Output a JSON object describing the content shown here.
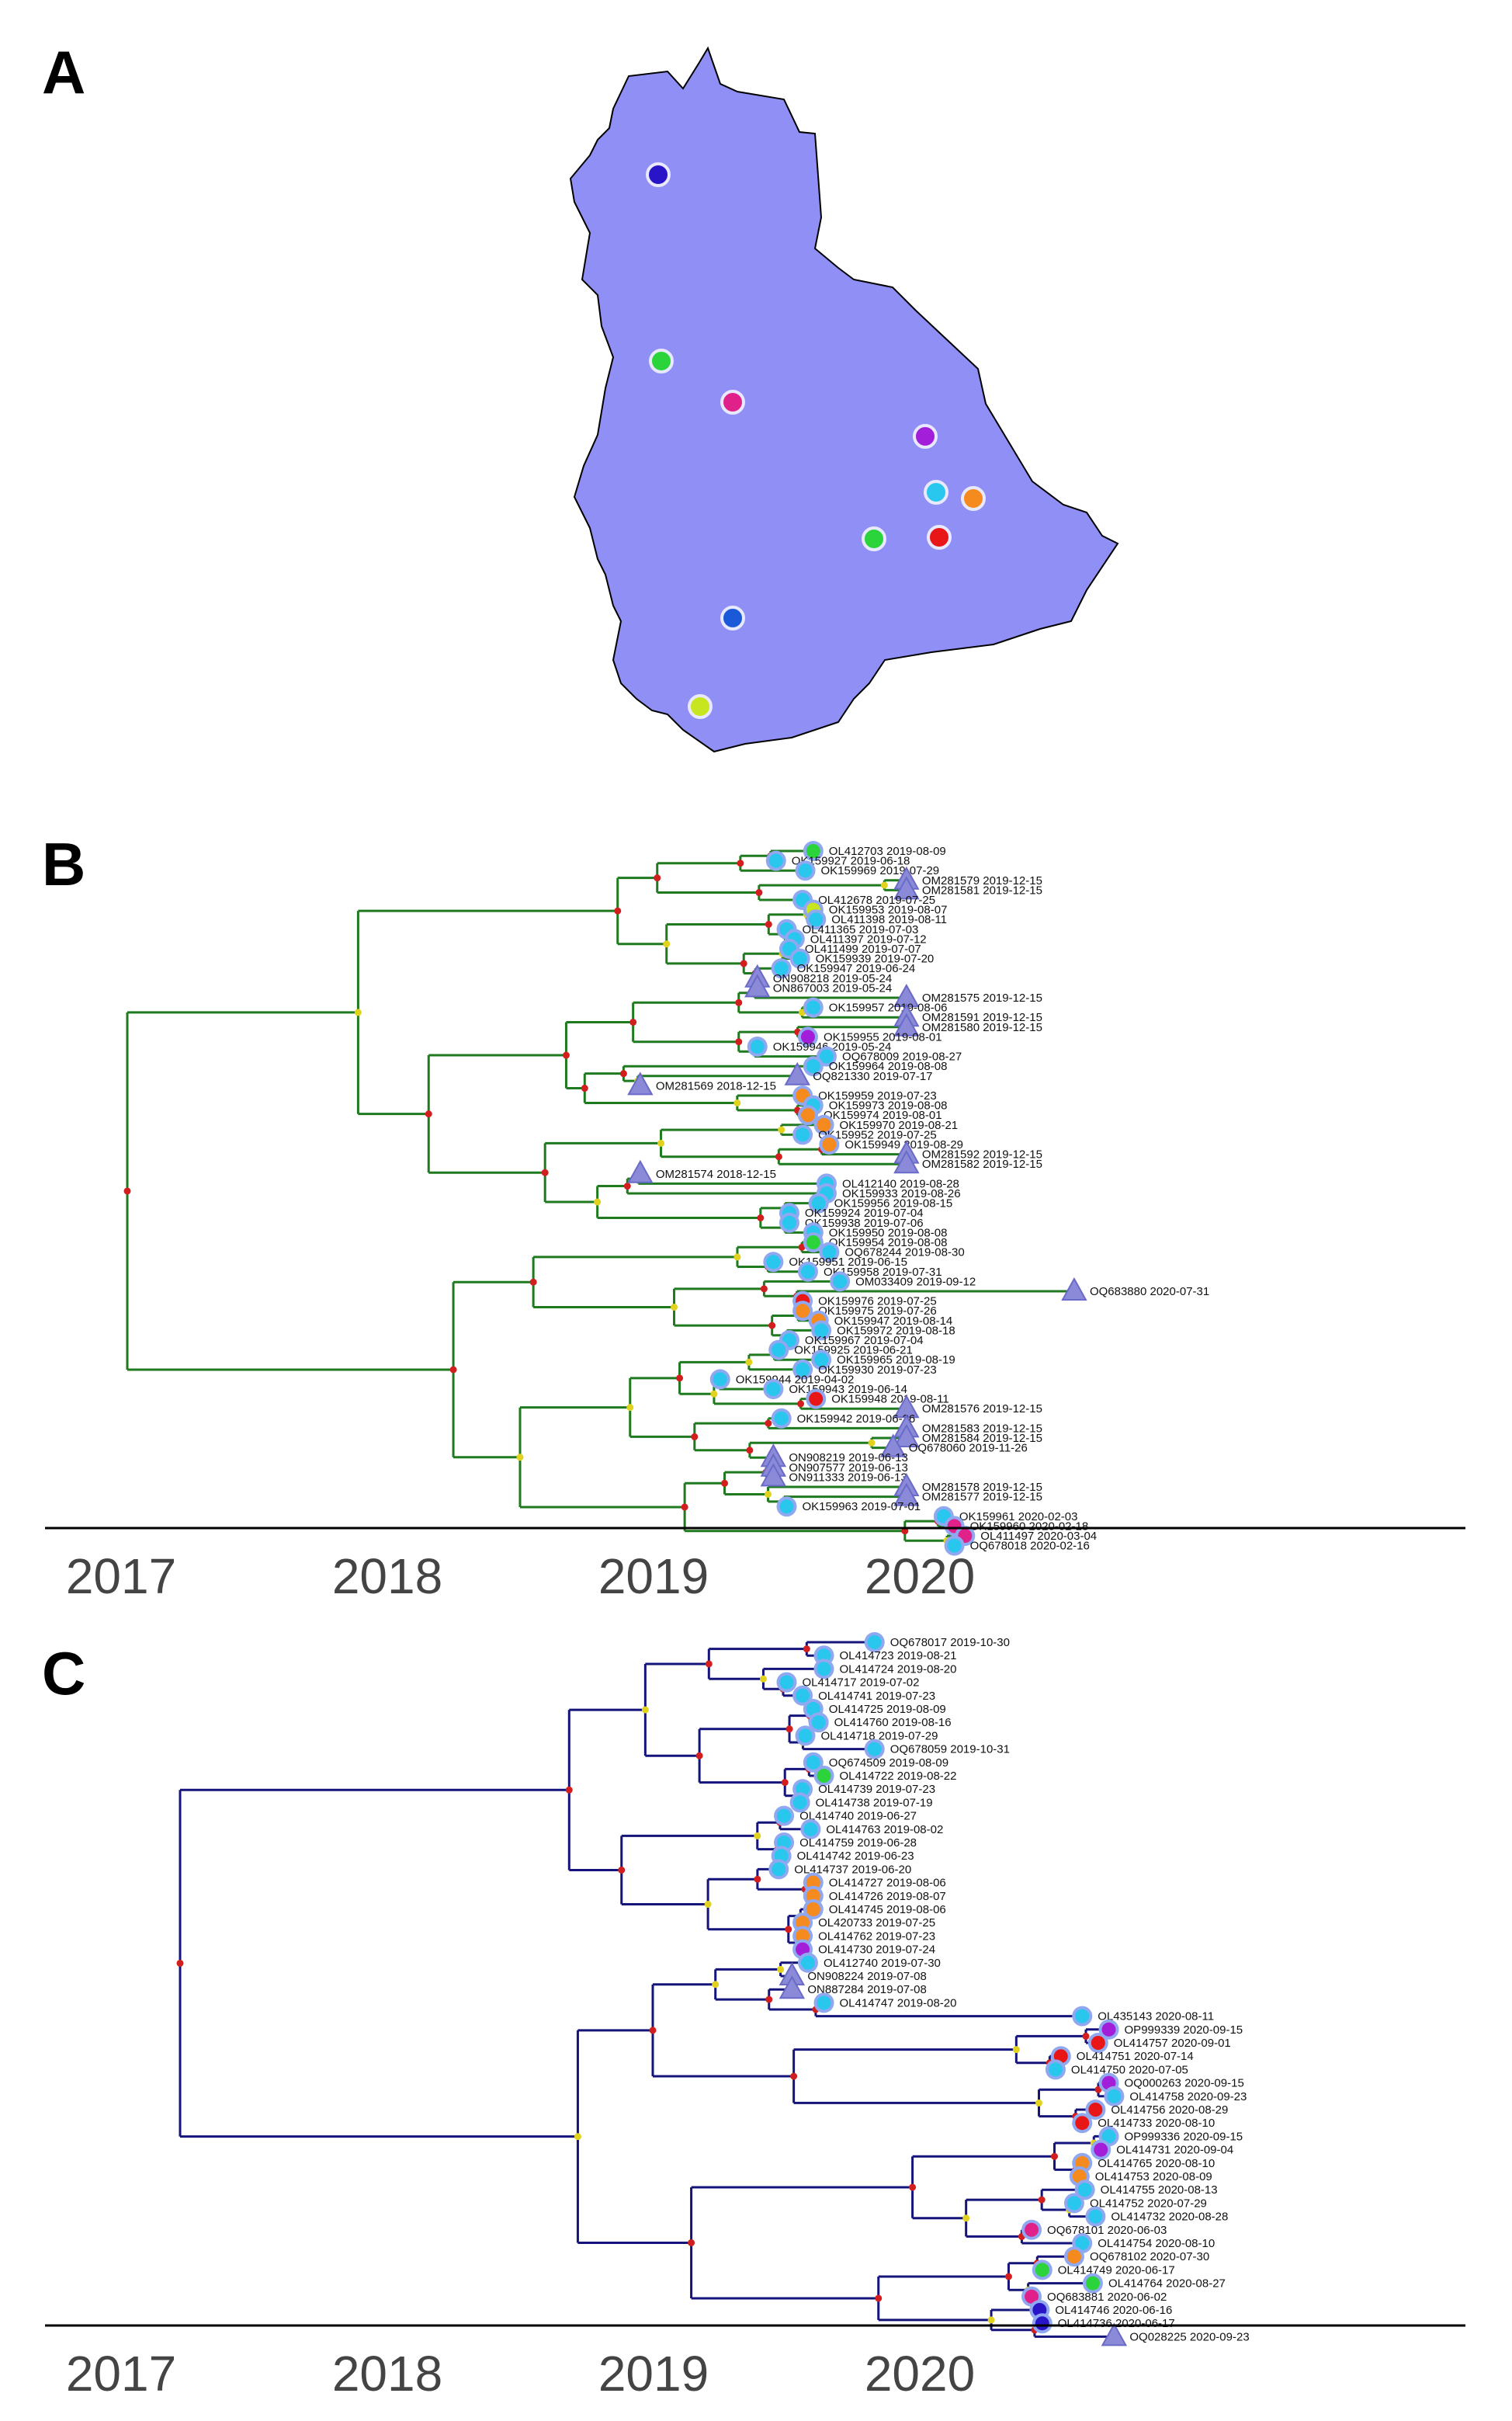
{
  "panels": {
    "a": "A",
    "b": "B",
    "c": "C"
  },
  "colors": {
    "map_fill": "#8f8ff5",
    "tree_b": "#1f7a1f",
    "tree_c": "#14147a",
    "node_red": "#d21e1e",
    "node_yellow": "#e0d21e",
    "triangle": "#8a8ad8",
    "cyan": "#29c6ee",
    "orange": "#f58a1e",
    "magenta": "#e0218a",
    "purple": "#a21ed8",
    "red": "#e81616",
    "green": "#2bd43b",
    "blue": "#1a5ad8",
    "indigo": "#2a14c8",
    "lime": "#c8e620"
  },
  "chart_data": [
    {
      "panel": "A",
      "type": "map",
      "sites": [
        {
          "color": "indigo"
        },
        {
          "color": "green"
        },
        {
          "color": "magenta"
        },
        {
          "color": "purple"
        },
        {
          "color": "cyan"
        },
        {
          "color": "orange"
        },
        {
          "color": "green"
        },
        {
          "color": "red"
        },
        {
          "color": "blue"
        },
        {
          "color": "lime"
        }
      ]
    },
    {
      "panel": "B",
      "type": "tree",
      "xlim": [
        2016.35,
        2021.6
      ],
      "x_ticks": [
        "2017",
        "2018",
        "2019",
        "2020"
      ],
      "tips": [
        {
          "label": "OL412703 2019-08-09",
          "date": 2019.6,
          "mark": "green"
        },
        {
          "label": "OK159927 2019-06-18",
          "date": 2019.46,
          "mark": "cyan"
        },
        {
          "label": "OK159969 2019-07-29",
          "date": 2019.57,
          "mark": "cyan"
        },
        {
          "label": "OM281579 2019-12-15",
          "date": 2019.95,
          "mark": "triangle"
        },
        {
          "label": "OM281581 2019-12-15",
          "date": 2019.95,
          "mark": "triangle"
        },
        {
          "label": "OL412678 2019-07-25",
          "date": 2019.56,
          "mark": "cyan"
        },
        {
          "label": "OK159953 2019-08-07",
          "date": 2019.6,
          "mark": "lime"
        },
        {
          "label": "OL411398 2019-08-11",
          "date": 2019.61,
          "mark": "cyan"
        },
        {
          "label": "OL411365 2019-07-03",
          "date": 2019.5,
          "mark": "cyan"
        },
        {
          "label": "OL411397 2019-07-12",
          "date": 2019.53,
          "mark": "cyan"
        },
        {
          "label": "OL411499 2019-07-07",
          "date": 2019.51,
          "mark": "cyan"
        },
        {
          "label": "OK159939 2019-07-20",
          "date": 2019.55,
          "mark": "cyan"
        },
        {
          "label": "OK159947 2019-06-24",
          "date": 2019.48,
          "mark": "cyan"
        },
        {
          "label": "ON908218 2019-05-24",
          "date": 2019.39,
          "mark": "triangle"
        },
        {
          "label": "ON867003 2019-05-24",
          "date": 2019.39,
          "mark": "triangle"
        },
        {
          "label": "OM281575 2019-12-15",
          "date": 2019.95,
          "mark": "triangle"
        },
        {
          "label": "OK159957 2019-08-06",
          "date": 2019.6,
          "mark": "cyan"
        },
        {
          "label": "OM281591 2019-12-15",
          "date": 2019.95,
          "mark": "triangle"
        },
        {
          "label": "OM281580 2019-12-15",
          "date": 2019.95,
          "mark": "triangle"
        },
        {
          "label": "OK159955 2019-08-01",
          "date": 2019.58,
          "mark": "purple"
        },
        {
          "label": "OK159946 2019-05-24",
          "date": 2019.39,
          "mark": "cyan"
        },
        {
          "label": "OQ678009 2019-08-27",
          "date": 2019.65,
          "mark": "cyan"
        },
        {
          "label": "OK159964 2019-08-08",
          "date": 2019.6,
          "mark": "cyan"
        },
        {
          "label": "OQ821330 2019-07-17",
          "date": 2019.54,
          "mark": "triangle"
        },
        {
          "label": "OM281569 2018-12-15",
          "date": 2018.95,
          "mark": "triangle"
        },
        {
          "label": "OK159959 2019-07-23",
          "date": 2019.56,
          "mark": "orange"
        },
        {
          "label": "OK159973 2019-08-08",
          "date": 2019.6,
          "mark": "cyan"
        },
        {
          "label": "OK159974 2019-08-01",
          "date": 2019.58,
          "mark": "orange"
        },
        {
          "label": "OK159970 2019-08-21",
          "date": 2019.64,
          "mark": "orange"
        },
        {
          "label": "OK159952 2019-07-25",
          "date": 2019.56,
          "mark": "cyan"
        },
        {
          "label": "OK159949 2019-08-29",
          "date": 2019.66,
          "mark": "orange"
        },
        {
          "label": "OM281592 2019-12-15",
          "date": 2019.95,
          "mark": "triangle"
        },
        {
          "label": "OM281582 2019-12-15",
          "date": 2019.95,
          "mark": "triangle"
        },
        {
          "label": "OM281574 2018-12-15",
          "date": 2018.95,
          "mark": "triangle"
        },
        {
          "label": "OL412140 2019-08-28",
          "date": 2019.65,
          "mark": "cyan"
        },
        {
          "label": "OK159933 2019-08-26",
          "date": 2019.65,
          "mark": "cyan"
        },
        {
          "label": "OK159956 2019-08-15",
          "date": 2019.62,
          "mark": "cyan"
        },
        {
          "label": "OK159924 2019-07-04",
          "date": 2019.51,
          "mark": "cyan"
        },
        {
          "label": "OK159938 2019-07-06",
          "date": 2019.51,
          "mark": "cyan"
        },
        {
          "label": "OK159950 2019-08-08",
          "date": 2019.6,
          "mark": "cyan"
        },
        {
          "label": "OK159954 2019-08-08",
          "date": 2019.6,
          "mark": "green"
        },
        {
          "label": "OQ678244 2019-08-30",
          "date": 2019.66,
          "mark": "cyan"
        },
        {
          "label": "OK159951 2019-06-15",
          "date": 2019.45,
          "mark": "cyan"
        },
        {
          "label": "OK159958 2019-07-31",
          "date": 2019.58,
          "mark": "cyan"
        },
        {
          "label": "OM033409 2019-09-12",
          "date": 2019.7,
          "mark": "cyan"
        },
        {
          "label": "OQ683880 2020-07-31",
          "date": 2020.58,
          "mark": "triangle"
        },
        {
          "label": "OK159976 2019-07-25",
          "date": 2019.56,
          "mark": "red"
        },
        {
          "label": "OK159975 2019-07-26",
          "date": 2019.56,
          "mark": "orange"
        },
        {
          "label": "OK159947 2019-08-14",
          "date": 2019.62,
          "mark": "orange"
        },
        {
          "label": "OK159972 2019-08-18",
          "date": 2019.63,
          "mark": "cyan"
        },
        {
          "label": "OK159967 2019-07-04",
          "date": 2019.51,
          "mark": "cyan"
        },
        {
          "label": "OK159925 2019-06-21",
          "date": 2019.47,
          "mark": "cyan"
        },
        {
          "label": "OK159965 2019-08-19",
          "date": 2019.63,
          "mark": "cyan"
        },
        {
          "label": "OK159930 2019-07-23",
          "date": 2019.56,
          "mark": "cyan"
        },
        {
          "label": "OK159944 2019-04-02",
          "date": 2019.25,
          "mark": "cyan"
        },
        {
          "label": "OK159943 2019-06-14",
          "date": 2019.45,
          "mark": "cyan"
        },
        {
          "label": "OK159948 2019-08-11",
          "date": 2019.61,
          "mark": "red"
        },
        {
          "label": "OM281576 2019-12-15",
          "date": 2019.95,
          "mark": "triangle"
        },
        {
          "label": "OK159942 2019-06-26",
          "date": 2019.48,
          "mark": "cyan"
        },
        {
          "label": "OM281583 2019-12-15",
          "date": 2019.95,
          "mark": "triangle"
        },
        {
          "label": "OM281584 2019-12-15",
          "date": 2019.95,
          "mark": "triangle"
        },
        {
          "label": "OQ678060 2019-11-26",
          "date": 2019.9,
          "mark": "triangle"
        },
        {
          "label": "ON908219 2019-06-13",
          "date": 2019.45,
          "mark": "triangle"
        },
        {
          "label": "ON907577 2019-06-13",
          "date": 2019.45,
          "mark": "triangle"
        },
        {
          "label": "ON911333 2019-06-13",
          "date": 2019.45,
          "mark": "triangle"
        },
        {
          "label": "OM281578 2019-12-15",
          "date": 2019.95,
          "mark": "triangle"
        },
        {
          "label": "OM281577 2019-12-15",
          "date": 2019.95,
          "mark": "triangle"
        },
        {
          "label": "OK159963 2019-07-01",
          "date": 2019.5,
          "mark": "cyan"
        },
        {
          "label": "OK159961 2020-02-03",
          "date": 2020.09,
          "mark": "cyan"
        },
        {
          "label": "OK159960 2020-02-18",
          "date": 2020.13,
          "mark": "magenta"
        },
        {
          "label": "OL411497 2020-03-04",
          "date": 2020.17,
          "mark": "magenta"
        },
        {
          "label": "OQ678018 2020-02-16",
          "date": 2020.13,
          "mark": "cyan"
        }
      ]
    },
    {
      "panel": "C",
      "type": "tree",
      "xlim": [
        2016.35,
        2021.6
      ],
      "x_ticks": [
        "2017",
        "2018",
        "2019",
        "2020"
      ],
      "tips": [
        {
          "label": "OQ678017 2019-10-30",
          "date": 2019.83,
          "mark": "cyan"
        },
        {
          "label": "OL414723 2019-08-21",
          "date": 2019.64,
          "mark": "cyan"
        },
        {
          "label": "OL414724 2019-08-20",
          "date": 2019.64,
          "mark": "cyan"
        },
        {
          "label": "OL414717 2019-07-02",
          "date": 2019.5,
          "mark": "cyan"
        },
        {
          "label": "OL414741 2019-07-23",
          "date": 2019.56,
          "mark": "cyan"
        },
        {
          "label": "OL414725 2019-08-09",
          "date": 2019.6,
          "mark": "cyan"
        },
        {
          "label": "OL414760 2019-08-16",
          "date": 2019.62,
          "mark": "cyan"
        },
        {
          "label": "OL414718 2019-07-29",
          "date": 2019.57,
          "mark": "cyan"
        },
        {
          "label": "OQ678059 2019-10-31",
          "date": 2019.83,
          "mark": "cyan"
        },
        {
          "label": "OQ674509 2019-08-09",
          "date": 2019.6,
          "mark": "cyan"
        },
        {
          "label": "OL414722 2019-08-22",
          "date": 2019.64,
          "mark": "green"
        },
        {
          "label": "OL414739 2019-07-23",
          "date": 2019.56,
          "mark": "cyan"
        },
        {
          "label": "OL414738 2019-07-19",
          "date": 2019.55,
          "mark": "cyan"
        },
        {
          "label": "OL414740 2019-06-27",
          "date": 2019.49,
          "mark": "cyan"
        },
        {
          "label": "OL414763 2019-08-02",
          "date": 2019.59,
          "mark": "cyan"
        },
        {
          "label": "OL414759 2019-06-28",
          "date": 2019.49,
          "mark": "cyan"
        },
        {
          "label": "OL414742 2019-06-23",
          "date": 2019.48,
          "mark": "cyan"
        },
        {
          "label": "OL414737 2019-06-20",
          "date": 2019.47,
          "mark": "cyan"
        },
        {
          "label": "OL414727 2019-08-06",
          "date": 2019.6,
          "mark": "orange"
        },
        {
          "label": "OL414726 2019-08-07",
          "date": 2019.6,
          "mark": "orange"
        },
        {
          "label": "OL414745 2019-08-06",
          "date": 2019.6,
          "mark": "orange"
        },
        {
          "label": "OL420733 2019-07-25",
          "date": 2019.56,
          "mark": "orange"
        },
        {
          "label": "OL414762 2019-07-23",
          "date": 2019.56,
          "mark": "orange"
        },
        {
          "label": "OL414730 2019-07-24",
          "date": 2019.56,
          "mark": "purple"
        },
        {
          "label": "OL412740 2019-07-30",
          "date": 2019.58,
          "mark": "cyan"
        },
        {
          "label": "ON908224 2019-07-08",
          "date": 2019.52,
          "mark": "triangle"
        },
        {
          "label": "ON887284 2019-07-08",
          "date": 2019.52,
          "mark": "triangle"
        },
        {
          "label": "OL414747 2019-08-20",
          "date": 2019.64,
          "mark": "cyan"
        },
        {
          "label": "OL435143 2020-08-11",
          "date": 2020.61,
          "mark": "cyan"
        },
        {
          "label": "OP999339 2020-09-15",
          "date": 2020.71,
          "mark": "purple"
        },
        {
          "label": "OL414757 2020-09-01",
          "date": 2020.67,
          "mark": "red"
        },
        {
          "label": "OL414751 2020-07-14",
          "date": 2020.53,
          "mark": "red"
        },
        {
          "label": "OL414750 2020-07-05",
          "date": 2020.51,
          "mark": "cyan"
        },
        {
          "label": "OQ000263 2020-09-15",
          "date": 2020.71,
          "mark": "purple"
        },
        {
          "label": "OL414758 2020-09-23",
          "date": 2020.73,
          "mark": "cyan"
        },
        {
          "label": "OL414756 2020-08-29",
          "date": 2020.66,
          "mark": "red"
        },
        {
          "label": "OL414733 2020-08-10",
          "date": 2020.61,
          "mark": "red"
        },
        {
          "label": "OP999336 2020-09-15",
          "date": 2020.71,
          "mark": "cyan"
        },
        {
          "label": "OL414731 2020-09-04",
          "date": 2020.68,
          "mark": "purple"
        },
        {
          "label": "OL414765 2020-08-10",
          "date": 2020.61,
          "mark": "orange"
        },
        {
          "label": "OL414753 2020-08-09",
          "date": 2020.6,
          "mark": "orange"
        },
        {
          "label": "OL414755 2020-08-13",
          "date": 2020.62,
          "mark": "cyan"
        },
        {
          "label": "OL414752 2020-07-29",
          "date": 2020.58,
          "mark": "cyan"
        },
        {
          "label": "OL414732 2020-08-28",
          "date": 2020.66,
          "mark": "cyan"
        },
        {
          "label": "OQ678101 2020-06-03",
          "date": 2020.42,
          "mark": "magenta"
        },
        {
          "label": "OL414754 2020-08-10",
          "date": 2020.61,
          "mark": "cyan"
        },
        {
          "label": "OQ678102 2020-07-30",
          "date": 2020.58,
          "mark": "orange"
        },
        {
          "label": "OL414749 2020-06-17",
          "date": 2020.46,
          "mark": "green"
        },
        {
          "label": "OL414764 2020-08-27",
          "date": 2020.65,
          "mark": "green"
        },
        {
          "label": "OQ683881 2020-06-02",
          "date": 2020.42,
          "mark": "magenta"
        },
        {
          "label": "OL414746 2020-06-16",
          "date": 2020.45,
          "mark": "indigo"
        },
        {
          "label": "OL414736 2020-06-17",
          "date": 2020.46,
          "mark": "indigo"
        },
        {
          "label": "OQ028225 2020-09-23",
          "date": 2020.73,
          "mark": "triangle"
        }
      ]
    }
  ]
}
